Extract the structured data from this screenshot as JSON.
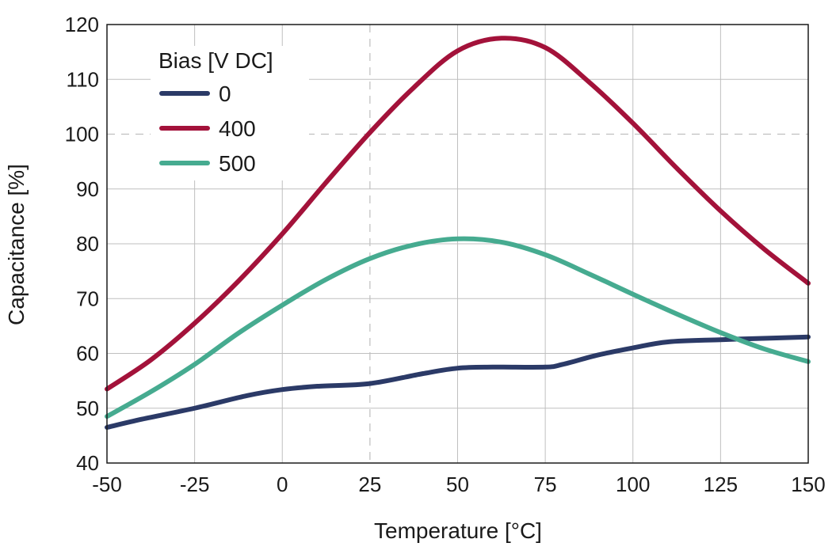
{
  "chart_data": {
    "type": "line",
    "title": "",
    "xlabel": "Temperature [°C]",
    "ylabel": "Capacitance [%]",
    "xlim": [
      -50,
      150
    ],
    "ylim": [
      40,
      120
    ],
    "x_ticks": [
      -50,
      -25,
      0,
      25,
      50,
      75,
      100,
      125,
      150
    ],
    "y_ticks": [
      40,
      50,
      60,
      70,
      80,
      90,
      100,
      110,
      120
    ],
    "reference_lines": {
      "x": 25,
      "y": 100
    },
    "grid": true,
    "legend": {
      "title": "Bias [V DC]",
      "placement": "top-left"
    },
    "series": [
      {
        "name": "0",
        "color": "#2b3a67",
        "x": [
          -50,
          -40,
          -25,
          -10,
          0,
          10,
          25,
          40,
          50,
          60,
          75,
          80,
          90,
          100,
          110,
          125,
          140,
          150
        ],
        "y": [
          46.5,
          48,
          50,
          52.3,
          53.4,
          54,
          54.5,
          56.3,
          57.3,
          57.5,
          57.5,
          58,
          59.7,
          61,
          62.1,
          62.5,
          62.8,
          63
        ]
      },
      {
        "name": "400",
        "color": "#a3123a",
        "x": [
          -50,
          -37.5,
          -25,
          -12.5,
          0,
          12.5,
          25,
          37.5,
          50,
          62.5,
          75,
          87.5,
          100,
          112.5,
          125,
          137.5,
          150
        ],
        "y": [
          53.5,
          58.8,
          65.5,
          73.2,
          81.8,
          91.2,
          100.3,
          108.5,
          115.2,
          117.5,
          115.8,
          109.5,
          102,
          93.8,
          86,
          79,
          72.8
        ]
      },
      {
        "name": "500",
        "color": "#46ab90",
        "x": [
          -50,
          -37.5,
          -25,
          -12.5,
          0,
          12.5,
          25,
          37.5,
          50,
          62.5,
          75,
          87.5,
          100,
          112.5,
          125,
          137.5,
          150
        ],
        "y": [
          48.5,
          53,
          58,
          63.7,
          68.8,
          73.5,
          77.3,
          79.8,
          80.9,
          80.3,
          78,
          74.5,
          70.8,
          67.2,
          63.8,
          60.8,
          58.5
        ]
      }
    ]
  }
}
